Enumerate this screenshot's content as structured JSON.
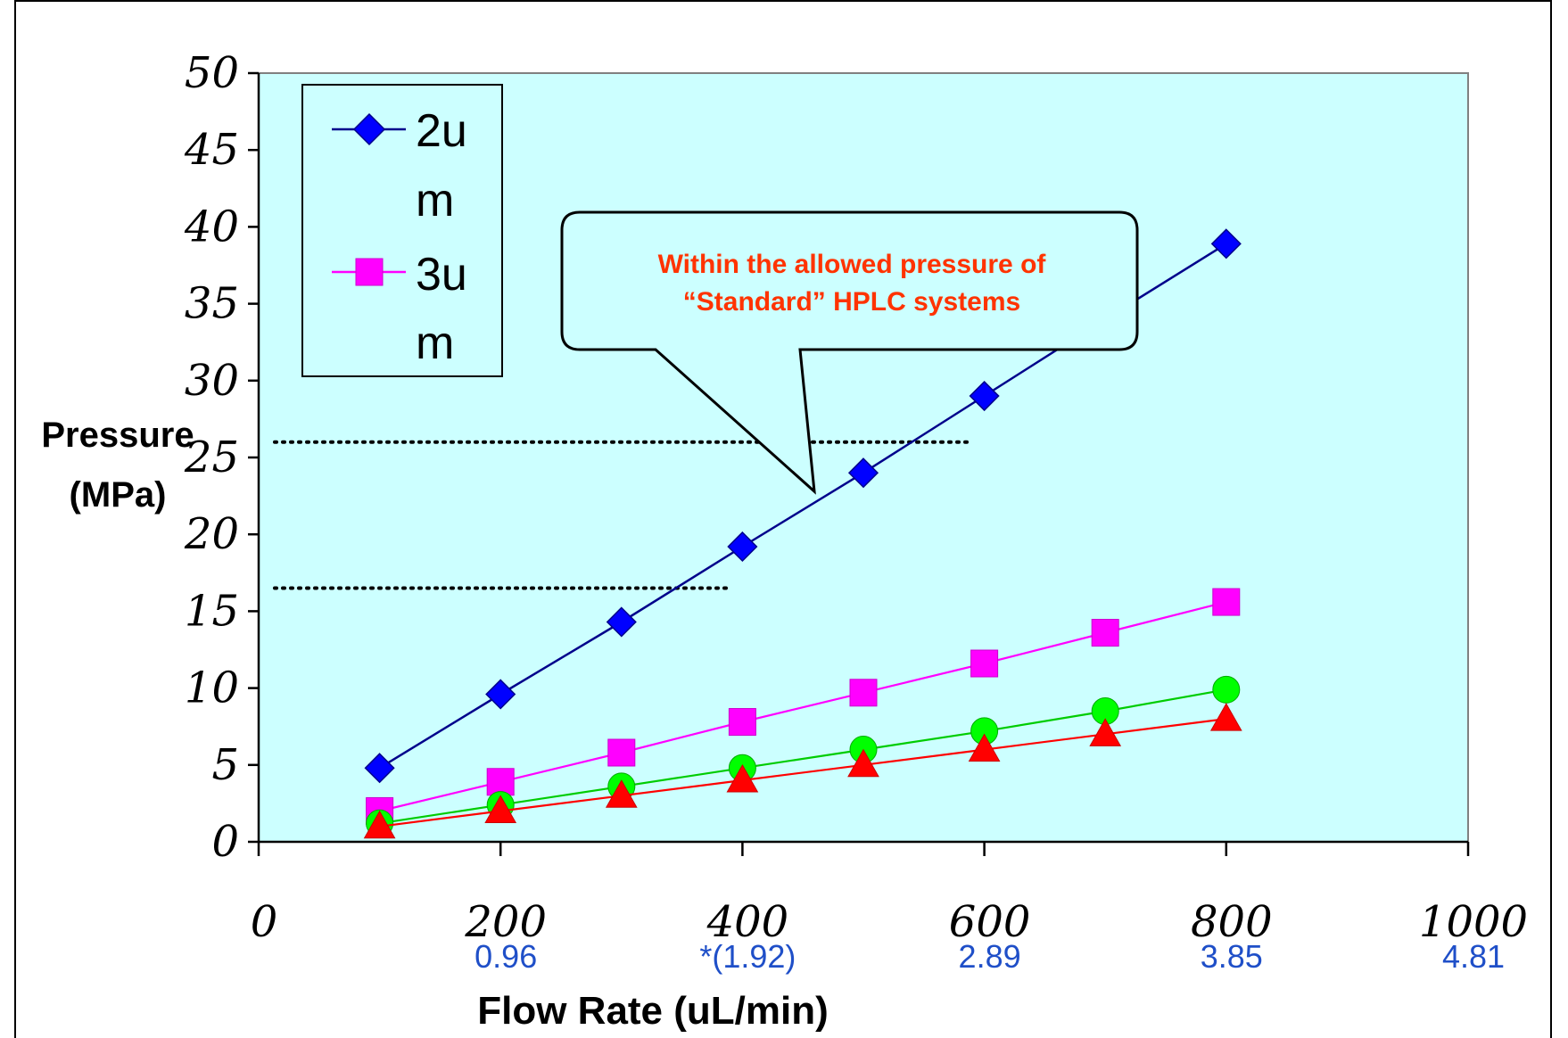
{
  "chart_data": {
    "type": "line",
    "xlabel": "Flow Rate (uL/min)",
    "ylabel": [
      "Pressure",
      "(MPa)"
    ],
    "xlim": [
      0,
      1000
    ],
    "ylim": [
      0,
      50
    ],
    "xticks": [
      0,
      200,
      400,
      600,
      800,
      1000
    ],
    "xtick_labels": [
      "0",
      "200",
      "400",
      "600",
      "800",
      "1000"
    ],
    "yticks": [
      0,
      5,
      10,
      15,
      20,
      25,
      30,
      35,
      40,
      45,
      50
    ],
    "secondary_x_labels": [
      {
        "x": 200,
        "label": "0.96"
      },
      {
        "x": 400,
        "label": "*(1.92)"
      },
      {
        "x": 600,
        "label": "2.89"
      },
      {
        "x": 800,
        "label": "3.85"
      },
      {
        "x": 1000,
        "label": "4.81"
      }
    ],
    "plot_background": "#ccffff",
    "grid": false,
    "legend_position": "top-left",
    "series": [
      {
        "name": "2um",
        "legend_lines": [
          "2u",
          "m"
        ],
        "color": "#00008b",
        "marker_color": "#0000ff",
        "marker": "diamond",
        "x": [
          100,
          200,
          300,
          400,
          500,
          600,
          700,
          800
        ],
        "values": [
          4.8,
          9.6,
          14.3,
          19.2,
          24.0,
          29.0,
          34.0,
          38.9
        ]
      },
      {
        "name": "3um",
        "legend_lines": [
          "3u",
          "m"
        ],
        "color": "#ff00ff",
        "marker_color": "#ff00ff",
        "marker": "square",
        "x": [
          100,
          200,
          300,
          400,
          500,
          600,
          700,
          800
        ],
        "values": [
          2.0,
          3.9,
          5.8,
          7.8,
          9.7,
          11.6,
          13.6,
          15.6
        ]
      },
      {
        "color": "#00cc00",
        "marker_color": "#00ff00",
        "marker": "circle",
        "x": [
          100,
          200,
          300,
          400,
          500,
          600,
          700,
          800
        ],
        "values": [
          1.2,
          2.4,
          3.6,
          4.8,
          6.0,
          7.2,
          8.5,
          9.9
        ]
      },
      {
        "color": "#ff0000",
        "marker_color": "#ff0000",
        "marker": "triangle",
        "x": [
          100,
          200,
          300,
          400,
          500,
          600,
          700,
          800
        ],
        "values": [
          1.0,
          2.0,
          3.0,
          4.0,
          5.0,
          6.0,
          7.0,
          8.0
        ]
      }
    ],
    "reference_lines": [
      {
        "y": 26,
        "x_start": 0,
        "x_end": 590,
        "style": "dotted"
      },
      {
        "y": 16.5,
        "x_start": 0,
        "x_end": 390,
        "style": "dotted"
      }
    ],
    "annotation": {
      "lines": [
        "Within the allowed pressure of",
        "“Standard”  HPLC systems"
      ],
      "color": "#ff3300"
    }
  }
}
